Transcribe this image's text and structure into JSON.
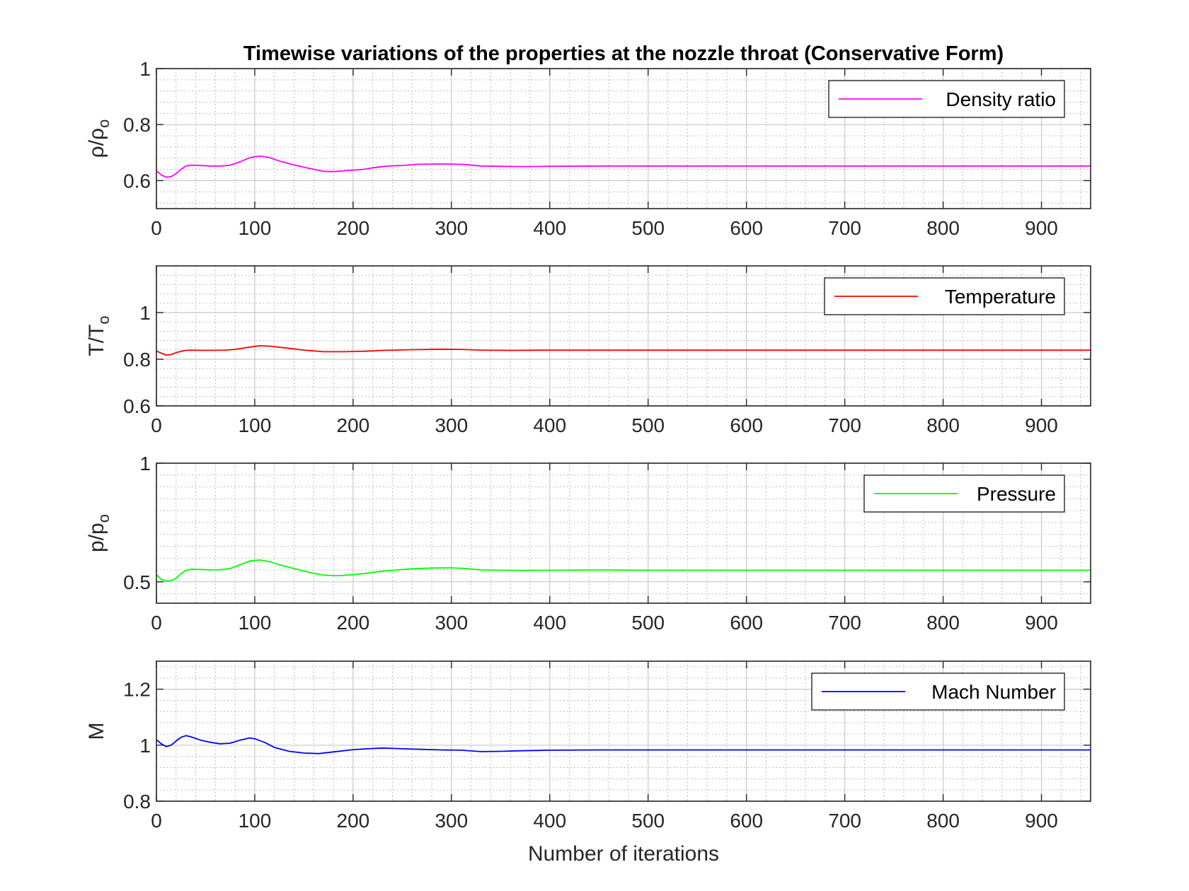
{
  "figure": {
    "title": "Timewise variations of the properties at the nozzle throat (Conservative Form)",
    "xlabel": "Number of iterations"
  },
  "chart_data": [
    {
      "type": "line",
      "ylabel": "ρ/ρo",
      "ylabel_parts": {
        "base": "ρ/ρ",
        "sub": "o"
      },
      "xlim": [
        0,
        950
      ],
      "ylim": [
        0.5,
        1.0
      ],
      "xticks": [
        0,
        100,
        200,
        300,
        400,
        500,
        600,
        700,
        800,
        900
      ],
      "yticks": [
        0.6,
        0.8,
        1
      ],
      "ytick_labels": [
        "0.6",
        "0.8",
        "1"
      ],
      "yminor_step": 0.04,
      "grid": "on",
      "legend_placement": "top-right",
      "series": [
        {
          "name": "Density ratio",
          "color": "#ff00ff",
          "x": [
            0,
            5,
            10,
            15,
            20,
            25,
            30,
            35,
            45,
            55,
            65,
            75,
            85,
            95,
            105,
            115,
            125,
            140,
            155,
            170,
            180,
            195,
            210,
            220,
            235,
            250,
            265,
            280,
            300,
            315,
            330,
            350,
            375,
            400,
            450,
            500,
            600,
            700,
            800,
            950
          ],
          "y": [
            0.635,
            0.62,
            0.612,
            0.614,
            0.625,
            0.64,
            0.652,
            0.655,
            0.654,
            0.652,
            0.652,
            0.655,
            0.667,
            0.682,
            0.688,
            0.682,
            0.67,
            0.656,
            0.644,
            0.633,
            0.632,
            0.636,
            0.64,
            0.646,
            0.652,
            0.654,
            0.658,
            0.659,
            0.659,
            0.657,
            0.652,
            0.651,
            0.65,
            0.651,
            0.652,
            0.652,
            0.652,
            0.652,
            0.652,
            0.652
          ]
        }
      ]
    },
    {
      "type": "line",
      "ylabel": "T/To",
      "ylabel_parts": {
        "base": "T/T",
        "sub": "o"
      },
      "xlim": [
        0,
        950
      ],
      "ylim": [
        0.6,
        1.2
      ],
      "xticks": [
        0,
        100,
        200,
        300,
        400,
        500,
        600,
        700,
        800,
        900
      ],
      "yticks": [
        0.6,
        0.8,
        1
      ],
      "ytick_labels": [
        "0.6",
        "0.8",
        "1"
      ],
      "yminor_step": 0.04,
      "grid": "on",
      "legend_placement": "top-right",
      "series": [
        {
          "name": "Temperature",
          "color": "#ff0000",
          "x": [
            0,
            5,
            10,
            15,
            20,
            25,
            30,
            35,
            50,
            70,
            80,
            95,
            105,
            115,
            130,
            150,
            170,
            190,
            210,
            230,
            260,
            290,
            310,
            330,
            360,
            400,
            500,
            600,
            700,
            800,
            950
          ],
          "y": [
            0.835,
            0.826,
            0.818,
            0.82,
            0.828,
            0.834,
            0.838,
            0.839,
            0.838,
            0.839,
            0.842,
            0.852,
            0.858,
            0.856,
            0.849,
            0.839,
            0.832,
            0.832,
            0.834,
            0.838,
            0.841,
            0.843,
            0.842,
            0.839,
            0.838,
            0.839,
            0.839,
            0.839,
            0.839,
            0.839,
            0.839
          ]
        }
      ]
    },
    {
      "type": "line",
      "ylabel": "p/po",
      "ylabel_parts": {
        "base": "p/p",
        "sub": "o"
      },
      "xlim": [
        0,
        950
      ],
      "ylim": [
        0.41,
        1.0
      ],
      "xticks": [
        0,
        100,
        200,
        300,
        400,
        500,
        600,
        700,
        800,
        900
      ],
      "yticks": [
        0.5,
        1
      ],
      "ytick_labels": [
        "0.5",
        "1"
      ],
      "yminor_step": 0.05,
      "grid": "on",
      "legend_placement": "top-right",
      "series": [
        {
          "name": "Pressure",
          "color": "#00ff00",
          "x": [
            0,
            5,
            10,
            15,
            20,
            25,
            30,
            35,
            45,
            55,
            65,
            75,
            85,
            95,
            105,
            115,
            125,
            140,
            155,
            170,
            185,
            200,
            215,
            230,
            245,
            260,
            280,
            300,
            315,
            330,
            350,
            375,
            400,
            450,
            500,
            600,
            700,
            800,
            950
          ],
          "y": [
            0.53,
            0.51,
            0.503,
            0.505,
            0.515,
            0.535,
            0.548,
            0.553,
            0.552,
            0.55,
            0.551,
            0.556,
            0.572,
            0.588,
            0.592,
            0.585,
            0.572,
            0.556,
            0.54,
            0.528,
            0.526,
            0.53,
            0.537,
            0.545,
            0.55,
            0.555,
            0.558,
            0.559,
            0.556,
            0.55,
            0.549,
            0.548,
            0.549,
            0.55,
            0.549,
            0.549,
            0.549,
            0.549,
            0.549
          ]
        }
      ]
    },
    {
      "type": "line",
      "ylabel": "M",
      "xlim": [
        0,
        950
      ],
      "ylim": [
        0.8,
        1.3
      ],
      "xticks": [
        0,
        100,
        200,
        300,
        400,
        500,
        600,
        700,
        800,
        900
      ],
      "yticks": [
        0.8,
        1,
        1.2
      ],
      "ytick_labels": [
        "0.8",
        "1",
        "1.2"
      ],
      "yminor_step": 0.04,
      "grid": "on",
      "legend_placement": "top-right",
      "series": [
        {
          "name": "Mach Number",
          "color": "#0000ff",
          "x": [
            0,
            5,
            10,
            15,
            20,
            25,
            30,
            35,
            45,
            55,
            65,
            75,
            85,
            95,
            100,
            110,
            120,
            135,
            150,
            165,
            180,
            200,
            215,
            230,
            250,
            270,
            290,
            310,
            330,
            350,
            370,
            400,
            450,
            500,
            600,
            700,
            800,
            950
          ],
          "y": [
            1.02,
            1.005,
            0.995,
            1.0,
            1.015,
            1.028,
            1.034,
            1.03,
            1.018,
            1.01,
            1.005,
            1.007,
            1.018,
            1.026,
            1.023,
            1.01,
            0.992,
            0.978,
            0.972,
            0.97,
            0.976,
            0.984,
            0.987,
            0.99,
            0.987,
            0.985,
            0.983,
            0.982,
            0.977,
            0.978,
            0.98,
            0.982,
            0.983,
            0.983,
            0.983,
            0.983,
            0.983,
            0.983
          ]
        }
      ]
    }
  ]
}
